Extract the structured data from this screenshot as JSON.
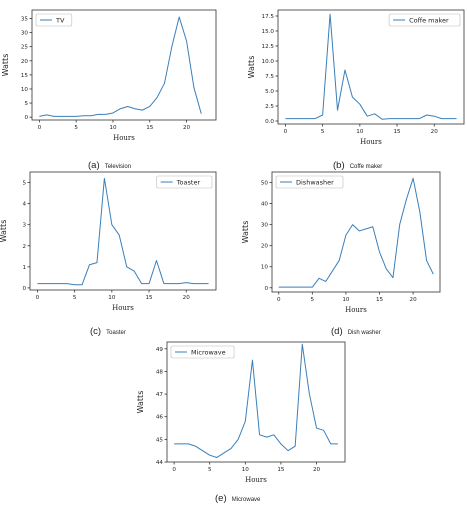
{
  "chart_data": [
    {
      "type": "line",
      "caption_tag": "(a)",
      "caption_name": "Television",
      "legend": [
        "TV"
      ],
      "legend_position": "top-left",
      "xlabel": "Hours",
      "ylabel": "Watts",
      "xlim": [
        -1,
        24
      ],
      "ylim": [
        -1,
        38
      ],
      "xticks": [
        0,
        5,
        10,
        15,
        20
      ],
      "yticks": [
        0,
        5,
        10,
        15,
        20,
        25,
        30,
        35
      ],
      "grid": false,
      "series": [
        {
          "name": "TV",
          "x": [
            0,
            1,
            2,
            3,
            4,
            5,
            6,
            7,
            8,
            9,
            10,
            11,
            12,
            13,
            14,
            15,
            16,
            17,
            18,
            19,
            20,
            21,
            22,
            23
          ],
          "y": [
            0.3,
            0.8,
            0.3,
            0.3,
            0.3,
            0.3,
            0.5,
            0.5,
            1.0,
            1.0,
            1.5,
            3.0,
            3.8,
            3.0,
            2.5,
            3.8,
            7.0,
            12.0,
            25.0,
            35.5,
            27.0,
            10.5,
            1.2,
            null
          ]
        }
      ]
    },
    {
      "type": "line",
      "caption_tag": "(b)",
      "caption_name": "Coffe maker",
      "legend": [
        "Coffe maker"
      ],
      "legend_position": "top-right",
      "xlabel": "Hours",
      "ylabel": "Watts",
      "xlim": [
        -1,
        24
      ],
      "ylim": [
        -0.5,
        18.5
      ],
      "xticks": [
        0,
        5,
        10,
        15,
        20
      ],
      "yticks": [
        0.0,
        2.5,
        5.0,
        7.5,
        10.0,
        12.5,
        15.0,
        17.5
      ],
      "ytick_labels": [
        "0.0",
        "2.5",
        "5.0",
        "7.5",
        "10.0",
        "12.5",
        "15.0",
        "17.5"
      ],
      "grid": false,
      "series": [
        {
          "name": "Coffe maker",
          "x": [
            0,
            1,
            2,
            3,
            4,
            5,
            6,
            7,
            8,
            9,
            10,
            11,
            12,
            13,
            14,
            15,
            16,
            17,
            18,
            19,
            20,
            21,
            22,
            23
          ],
          "y": [
            0.4,
            0.4,
            0.4,
            0.4,
            0.4,
            1.0,
            17.8,
            1.8,
            8.5,
            4.0,
            2.8,
            0.8,
            1.2,
            0.3,
            0.4,
            0.4,
            0.4,
            0.4,
            0.4,
            1.0,
            0.8,
            0.4,
            0.4,
            0.4
          ]
        }
      ]
    },
    {
      "type": "line",
      "caption_tag": "(c)",
      "caption_name": "Toaster",
      "legend": [
        "Toaster"
      ],
      "legend_position": "top-right",
      "xlabel": "Hours",
      "ylabel": "Watts",
      "xlim": [
        -1,
        24
      ],
      "ylim": [
        -0.1,
        5.5
      ],
      "xticks": [
        0,
        5,
        10,
        15,
        20
      ],
      "yticks": [
        0,
        1,
        2,
        3,
        4,
        5
      ],
      "grid": false,
      "series": [
        {
          "name": "Toaster",
          "x": [
            0,
            1,
            2,
            3,
            4,
            5,
            6,
            7,
            8,
            9,
            10,
            11,
            12,
            13,
            14,
            15,
            16,
            17,
            18,
            19,
            20,
            21,
            22,
            23
          ],
          "y": [
            0.2,
            0.2,
            0.2,
            0.2,
            0.2,
            0.15,
            0.15,
            1.1,
            1.2,
            5.2,
            3.0,
            2.5,
            1.0,
            0.8,
            0.2,
            0.2,
            1.3,
            0.2,
            0.2,
            0.2,
            0.25,
            0.2,
            0.2,
            0.2
          ]
        }
      ]
    },
    {
      "type": "line",
      "caption_tag": "(d)",
      "caption_name": "Dish washer",
      "legend": [
        "Dishwasher"
      ],
      "legend_position": "top-left",
      "xlabel": "Hours",
      "ylabel": "Watts",
      "xlim": [
        -1,
        24
      ],
      "ylim": [
        -2,
        55
      ],
      "xticks": [
        0,
        5,
        10,
        15,
        20
      ],
      "yticks": [
        0,
        10,
        20,
        30,
        40,
        50
      ],
      "grid": false,
      "series": [
        {
          "name": "Dishwasher",
          "x": [
            0,
            1,
            2,
            3,
            4,
            5,
            6,
            7,
            8,
            9,
            10,
            11,
            12,
            13,
            14,
            15,
            16,
            17,
            18,
            19,
            20,
            21,
            22,
            23
          ],
          "y": [
            0.3,
            0.3,
            0.3,
            0.3,
            0.3,
            0.3,
            4.5,
            3.0,
            8.0,
            13.0,
            25.0,
            30.0,
            27.0,
            28.0,
            29.0,
            17.0,
            9.0,
            4.8,
            30.0,
            42.0,
            52.0,
            36.0,
            13.0,
            6.5
          ]
        }
      ]
    },
    {
      "type": "line",
      "caption_tag": "(e)",
      "caption_name": "Microwave",
      "legend": [
        "Microwave"
      ],
      "legend_position": "top-left",
      "xlabel": "Hours",
      "ylabel": "Watts",
      "xlim": [
        -1,
        24
      ],
      "ylim": [
        44.0,
        49.3
      ],
      "xticks": [
        0,
        5,
        10,
        15,
        20
      ],
      "yticks": [
        44,
        45,
        46,
        47,
        48,
        49
      ],
      "grid": false,
      "series": [
        {
          "name": "Microwave",
          "x": [
            0,
            1,
            2,
            3,
            4,
            5,
            6,
            7,
            8,
            9,
            10,
            11,
            12,
            13,
            14,
            15,
            16,
            17,
            18,
            19,
            20,
            21,
            22,
            23
          ],
          "y": [
            44.8,
            44.8,
            44.8,
            44.7,
            44.5,
            44.3,
            44.2,
            44.4,
            44.6,
            45.0,
            45.8,
            48.5,
            45.2,
            45.1,
            45.2,
            44.8,
            44.5,
            44.7,
            49.2,
            47.0,
            45.5,
            45.4,
            44.8,
            44.8
          ]
        }
      ]
    }
  ]
}
